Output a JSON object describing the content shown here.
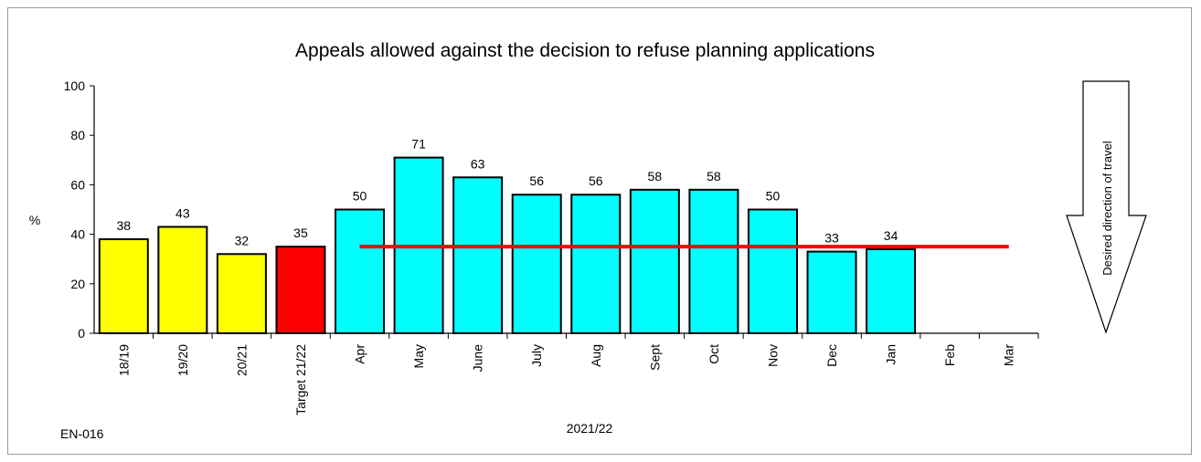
{
  "chart_data": {
    "type": "bar",
    "title": "Appeals allowed against the decision to refuse planning applications",
    "ylabel": "%",
    "xlabel": "2021/22",
    "ylim": [
      0,
      100
    ],
    "yticks": [
      0,
      20,
      40,
      60,
      80,
      100
    ],
    "grid": false,
    "categories": [
      "18/19",
      "19/20",
      "20/21",
      "Target 21/22",
      "Apr",
      "May",
      "June",
      "July",
      "Aug",
      "Sept",
      "Oct",
      "Nov",
      "Dec",
      "Jan",
      "Feb",
      "Mar"
    ],
    "values": [
      38,
      43,
      32,
      35,
      50,
      71,
      63,
      56,
      56,
      58,
      58,
      50,
      33,
      34,
      null,
      null
    ],
    "bar_colors": [
      "#ffff00",
      "#ffff00",
      "#ffff00",
      "#ff0000",
      "#00ffff",
      "#00ffff",
      "#00ffff",
      "#00ffff",
      "#00ffff",
      "#00ffff",
      "#00ffff",
      "#00ffff",
      "#00ffff",
      "#00ffff",
      "#00ffff",
      "#00ffff"
    ],
    "target_line": {
      "value": 35,
      "from_category": "Apr",
      "to_category": "Mar",
      "color": "#ff0000"
    }
  },
  "annotations": {
    "code": "EN-016",
    "direction_text": "Desired direction of travel"
  }
}
